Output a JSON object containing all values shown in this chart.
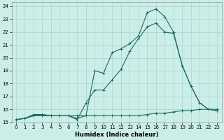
{
  "xlabel": "Humidex (Indice chaleur)",
  "xlim": [
    -0.5,
    23.5
  ],
  "ylim": [
    15.0,
    24.3
  ],
  "xticks": [
    0,
    1,
    2,
    3,
    4,
    5,
    6,
    7,
    8,
    9,
    10,
    11,
    12,
    13,
    14,
    15,
    16,
    17,
    18,
    19,
    20,
    21,
    22,
    23
  ],
  "yticks": [
    15,
    16,
    17,
    18,
    19,
    20,
    21,
    22,
    23,
    24
  ],
  "bg_color": "#cceee8",
  "grid_color": "#b0d8d2",
  "line_color": "#1a6b5e",
  "line1_x": [
    0,
    1,
    2,
    3,
    4,
    5,
    6,
    7,
    8,
    9,
    10,
    11,
    12,
    13,
    14,
    15,
    16,
    17,
    18,
    19,
    20,
    21,
    22,
    23
  ],
  "line1_y": [
    15.2,
    15.3,
    15.6,
    15.6,
    15.5,
    15.5,
    15.5,
    15.3,
    15.5,
    19.0,
    18.8,
    20.4,
    20.7,
    21.1,
    21.7,
    23.5,
    23.8,
    23.2,
    22.0,
    19.4,
    17.8,
    16.5,
    16.0,
    15.9
  ],
  "line2_x": [
    0,
    1,
    2,
    3,
    4,
    5,
    6,
    7,
    8,
    9,
    10,
    11,
    12,
    13,
    14,
    15,
    16,
    17,
    18,
    19,
    20,
    21,
    22,
    23
  ],
  "line2_y": [
    15.2,
    15.3,
    15.5,
    15.5,
    15.5,
    15.5,
    15.5,
    15.5,
    15.5,
    15.5,
    15.5,
    15.5,
    15.5,
    15.5,
    15.5,
    15.6,
    15.7,
    15.7,
    15.8,
    15.9,
    15.9,
    16.0,
    16.0,
    16.0
  ],
  "line3_x": [
    0,
    1,
    2,
    3,
    4,
    5,
    6,
    7,
    8,
    9,
    10,
    11,
    12,
    13,
    14,
    15,
    16,
    17,
    18,
    19,
    20,
    21,
    22,
    23
  ],
  "line3_y": [
    15.2,
    15.3,
    15.5,
    15.6,
    15.5,
    15.5,
    15.5,
    15.2,
    16.5,
    17.5,
    17.5,
    18.3,
    19.1,
    20.5,
    21.5,
    22.4,
    22.7,
    22.0,
    21.9,
    19.4,
    17.8,
    16.5,
    16.0,
    15.9
  ]
}
